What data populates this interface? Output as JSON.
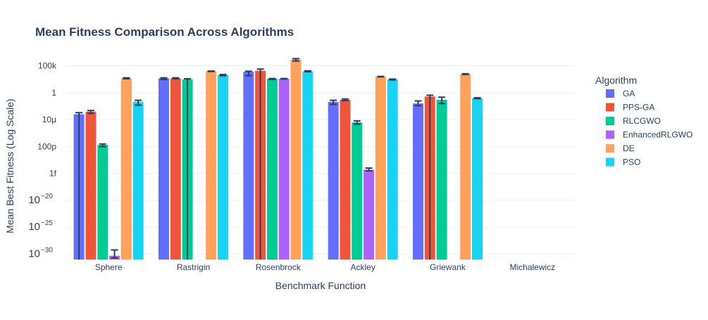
{
  "chart_data": {
    "type": "bar",
    "title": "Mean Fitness Comparison Across Algorithms",
    "xlabel": "Benchmark Function",
    "ylabel": "Mean Best Fitness (Log Scale)",
    "y_scale": "log",
    "ylim": [
      1e-31,
      1000000.0
    ],
    "categories": [
      "Sphere",
      "Rastrigin",
      "Rosenbrock",
      "Ackley",
      "Griewank",
      "Michalewicz"
    ],
    "y_ticks": [
      {
        "value": 1e-30,
        "label": "10",
        "exp": "−30"
      },
      {
        "value": 1e-25,
        "label": "10",
        "exp": "−25"
      },
      {
        "value": 1e-20,
        "label": "10",
        "exp": "−20"
      },
      {
        "value": 1e-15,
        "label": "1f",
        "exp": ""
      },
      {
        "value": 1e-10,
        "label": "100p",
        "exp": ""
      },
      {
        "value": 1e-05,
        "label": "10µ",
        "exp": ""
      },
      {
        "value": 1,
        "label": "1",
        "exp": ""
      },
      {
        "value": 100000.0,
        "label": "100k",
        "exp": ""
      }
    ],
    "legend": {
      "title": "Algorithm",
      "position": "right"
    },
    "grid": true,
    "series": [
      {
        "name": "GA",
        "color": "#636efa",
        "values": [
          0.0001,
          500,
          8000,
          0.02,
          0.01,
          null
        ],
        "err_low": [
          1e-31,
          300,
          1500,
          0.007,
          0.004,
          null
        ],
        "err_high": [
          0.0002,
          600,
          10000,
          0.04,
          0.03,
          null
        ]
      },
      {
        "name": "PPS-GA",
        "color": "#ef553b",
        "values": [
          0.0003,
          500,
          12000,
          0.05,
          0.2,
          null
        ],
        "err_low": [
          0.00015,
          400,
          1e-31,
          0.035,
          1e-31,
          null
        ],
        "err_high": [
          0.0005,
          600,
          25000,
          0.07,
          0.35,
          null
        ]
      },
      {
        "name": "RLCGWO",
        "color": "#00cc96",
        "values": [
          2e-10,
          300,
          400,
          3e-06,
          0.05,
          null
        ],
        "err_low": [
          1e-10,
          1e-31,
          300,
          1.5e-06,
          0.01,
          null
        ],
        "err_high": [
          3e-10,
          400,
          450,
          6e-06,
          0.15,
          null
        ]
      },
      {
        "name": "EnhancedRLGWO",
        "color": "#ab63fa",
        "values": [
          5e-31,
          null,
          400,
          5e-15,
          null,
          null
        ],
        "err_low": [
          2e-31,
          null,
          350,
          3e-15,
          null,
          null
        ],
        "err_high": [
          6e-30,
          null,
          450,
          1e-14,
          null,
          null
        ]
      },
      {
        "name": "DE",
        "color": "#ffa15a",
        "values": [
          500,
          10000,
          1500000.0,
          1000,
          3000,
          null
        ],
        "err_low": [
          400,
          9000,
          800000.0,
          900,
          2500,
          null
        ],
        "err_high": [
          600,
          11000,
          2200000.0,
          1100,
          3500,
          null
        ]
      },
      {
        "name": "PSO",
        "color": "#19d3f3",
        "values": [
          0.02,
          2000,
          10000,
          300,
          0.1,
          null
        ],
        "err_low": [
          0.005,
          1500,
          8000,
          250,
          0.08,
          null
        ],
        "err_high": [
          0.04,
          2500,
          12000,
          350,
          0.12,
          null
        ]
      }
    ]
  }
}
